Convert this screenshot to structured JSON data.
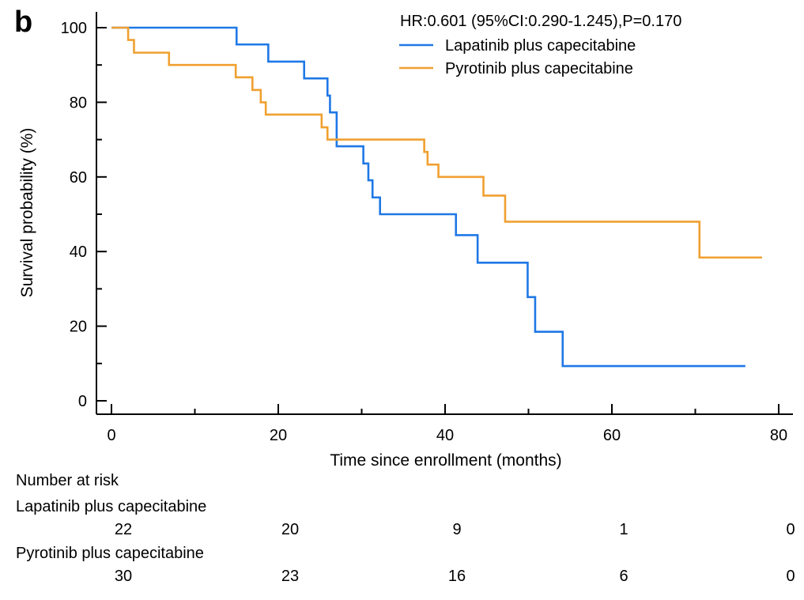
{
  "panel_label": "b",
  "colors": {
    "lapatinib": "#1f78e6",
    "pyrotinib": "#f0a030",
    "axis": "#000000"
  },
  "chart_data": {
    "type": "line",
    "step": true,
    "xlabel": "Time since enrollment (months)",
    "ylabel": "Survival probability (%)",
    "xlim": [
      0,
      80
    ],
    "ylim": [
      0,
      100
    ],
    "xticks": [
      0,
      20,
      40,
      60,
      80
    ],
    "yticks": [
      0,
      20,
      40,
      60,
      80,
      100
    ],
    "annotation": "HR:0.601 (95%CI:0.290-1.245),P=0.170",
    "series": [
      {
        "name": "Lapatinib plus capecitabine",
        "points": [
          [
            0,
            100
          ],
          [
            15,
            95.5
          ],
          [
            18.8,
            90.9
          ],
          [
            23.1,
            86.4
          ],
          [
            25.9,
            81.8
          ],
          [
            26.2,
            77.3
          ],
          [
            27,
            68.2
          ],
          [
            30.2,
            63.6
          ],
          [
            30.8,
            59.1
          ],
          [
            31.3,
            54.5
          ],
          [
            32.2,
            50
          ],
          [
            41.3,
            44.4
          ],
          [
            43.9,
            37
          ],
          [
            49.9,
            27.8
          ],
          [
            50.8,
            18.5
          ],
          [
            54.1,
            9.3
          ],
          [
            76,
            9.3
          ]
        ]
      },
      {
        "name": "Pyrotinib plus capecitabine",
        "points": [
          [
            0,
            100
          ],
          [
            2,
            96.7
          ],
          [
            2.7,
            93.3
          ],
          [
            6.9,
            90
          ],
          [
            14.9,
            86.7
          ],
          [
            16.9,
            83.3
          ],
          [
            17.9,
            80
          ],
          [
            18.5,
            76.7
          ],
          [
            25.2,
            73.3
          ],
          [
            25.9,
            70
          ],
          [
            37.5,
            66.7
          ],
          [
            37.9,
            63.3
          ],
          [
            39.2,
            60
          ],
          [
            44.6,
            55
          ],
          [
            47.2,
            48
          ],
          [
            70.5,
            38.4
          ],
          [
            78,
            38.4
          ]
        ]
      }
    ]
  },
  "risk_table": {
    "title": "Number at risk",
    "times": [
      0,
      20,
      40,
      60,
      80
    ],
    "groups": [
      {
        "name": "Lapatinib plus capecitabine",
        "counts": [
          "22",
          "20",
          "9",
          "1",
          "0"
        ]
      },
      {
        "name": "Pyrotinib plus capecitabine",
        "counts": [
          "30",
          "23",
          "16",
          "6",
          "0"
        ]
      }
    ]
  }
}
